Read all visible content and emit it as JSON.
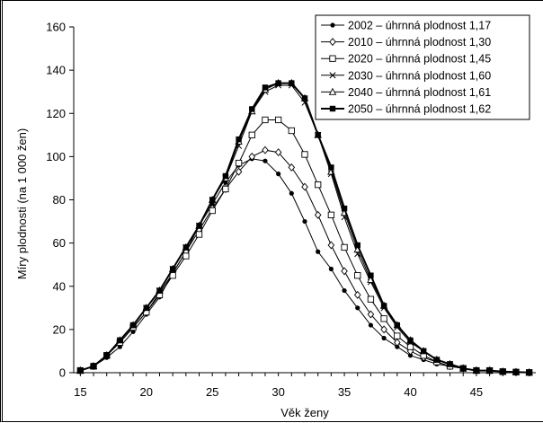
{
  "chart_data": {
    "type": "line",
    "xlabel": "Věk ženy",
    "ylabel": "Míry plodnosti (na 1 000 žen)",
    "xlim": [
      14.5,
      49.5
    ],
    "ylim": [
      0,
      160
    ],
    "xticks": [
      15,
      20,
      25,
      30,
      35,
      40,
      45
    ],
    "yticks": [
      0,
      20,
      40,
      60,
      80,
      100,
      120,
      140,
      160
    ],
    "grid": false,
    "legend_position": "top-right",
    "x": [
      15,
      16,
      17,
      18,
      19,
      20,
      21,
      22,
      23,
      24,
      25,
      26,
      27,
      28,
      29,
      30,
      31,
      32,
      33,
      34,
      35,
      36,
      37,
      38,
      39,
      40,
      41,
      42,
      43,
      44,
      45,
      46,
      47,
      48,
      49
    ],
    "series": [
      {
        "name": "2002 – úhrnná plodnost 1,17",
        "marker": "dot",
        "values": [
          1,
          3,
          7,
          12,
          19,
          27,
          35,
          46,
          56,
          68,
          78,
          88,
          96,
          99,
          98,
          92,
          83,
          70,
          56,
          48,
          38,
          30,
          22,
          16,
          12,
          8,
          6,
          4,
          3,
          2,
          1,
          1,
          0.5,
          0.3,
          0.1
        ]
      },
      {
        "name": "2010 – úhrnná plodnost 1,30",
        "marker": "diamond",
        "values": [
          1,
          3,
          8,
          14,
          21,
          28,
          37,
          46,
          56,
          66,
          76,
          85,
          93,
          100,
          103,
          102,
          95,
          86,
          73,
          59,
          47,
          36,
          27,
          20,
          14,
          10,
          7,
          5,
          3,
          2,
          1,
          1,
          0.5,
          0.3,
          0.1
        ]
      },
      {
        "name": "2020 – úhrnná plodnost 1,45",
        "marker": "square",
        "values": [
          1,
          3,
          8,
          14,
          21,
          28,
          36,
          45,
          54,
          64,
          75,
          85,
          97,
          110,
          117,
          117,
          112,
          101,
          87,
          73,
          58,
          45,
          34,
          25,
          17,
          12,
          8,
          5,
          3,
          2,
          1,
          1,
          0.5,
          0.3,
          0.1
        ]
      },
      {
        "name": "2030 – úhrnná plodnost 1,60",
        "marker": "x",
        "values": [
          1,
          3,
          8,
          15,
          22,
          30,
          38,
          48,
          58,
          68,
          80,
          90,
          105,
          121,
          130,
          133,
          133,
          125,
          110,
          92,
          72,
          55,
          42,
          30,
          21,
          14,
          10,
          6,
          4,
          2,
          1,
          1,
          0.5,
          0.3,
          0.1
        ]
      },
      {
        "name": "2040 – úhrnná plodnost 1,61",
        "marker": "triangle",
        "values": [
          1,
          3,
          8,
          15,
          22,
          30,
          38,
          48,
          58,
          68,
          80,
          90,
          107,
          121,
          131,
          134,
          134,
          127,
          110,
          93,
          74,
          57,
          43,
          31,
          22,
          15,
          10,
          6,
          4,
          2,
          1,
          1,
          0.5,
          0.3,
          0.1
        ]
      },
      {
        "name": "2050 – úhrnná plodnost 1,62",
        "marker": "filled-square",
        "values": [
          1,
          3,
          8,
          15,
          22,
          30,
          38,
          48,
          58,
          68,
          80,
          91,
          108,
          122,
          132,
          134,
          134,
          127,
          110,
          95,
          76,
          59,
          45,
          31,
          22,
          15,
          10,
          6,
          4,
          2,
          1,
          1,
          0.5,
          0.3,
          0.1
        ]
      }
    ]
  }
}
